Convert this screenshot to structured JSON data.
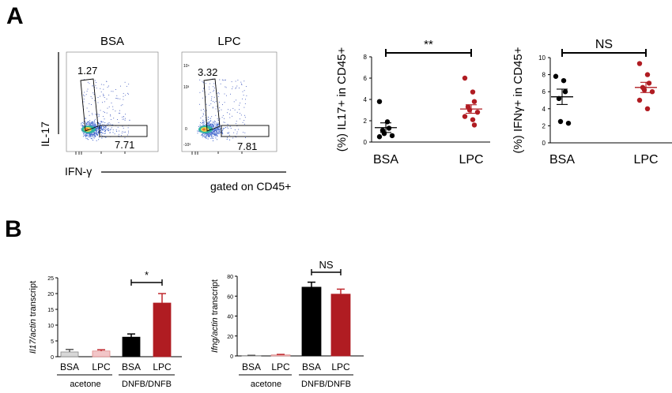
{
  "panel_a": {
    "label": "A",
    "flow": {
      "plots": [
        {
          "title": "BSA",
          "upper_gate_value": "1.27",
          "lower_gate_value": "7.71"
        },
        {
          "title": "LPC",
          "upper_gate_value": "3.32",
          "lower_gate_value": "7.81",
          "tick_labels": [
            "10⁴",
            "10³",
            "0",
            "-10³"
          ]
        }
      ],
      "y_axis_label": "IL-17",
      "x_axis_label": "IFN-γ",
      "gating_note": "gated on CD45+"
    }
  },
  "panel_b": {
    "label": "B",
    "group_labels": [
      "acetone",
      "DNFB/DNFB"
    ]
  },
  "colors": {
    "bsa": "#000000",
    "lpc": "#b01c22",
    "bsa_acetone_fill": "#d8d8d8",
    "lpc_acetone_fill": "#f2c6c8",
    "error_lpc": "#c0282d"
  },
  "chart_data": [
    {
      "type": "scatter",
      "ylabel": "(%) IL17+ in CD45+",
      "categories": [
        "BSA",
        "LPC"
      ],
      "ylim": [
        0,
        8
      ],
      "yticks": [
        "0",
        "2",
        "4",
        "6",
        "8"
      ],
      "series": [
        {
          "name": "BSA",
          "values": [
            3.8,
            1.9,
            1.3,
            1.1,
            0.8,
            0.6,
            0.5
          ],
          "mean": 1.35,
          "sem": 0.45
        },
        {
          "name": "LPC",
          "values": [
            6.0,
            4.7,
            3.8,
            3.3,
            3.0,
            2.8,
            2.4,
            2.1,
            1.6
          ],
          "mean": 3.1,
          "sem": 0.4
        }
      ],
      "significance": "**"
    },
    {
      "type": "scatter",
      "ylabel": "(%) IFNγ+ in CD45+",
      "categories": [
        "BSA",
        "LPC"
      ],
      "ylim": [
        0,
        10
      ],
      "yticks": [
        "0",
        "2",
        "4",
        "6",
        "8",
        "10"
      ],
      "series": [
        {
          "name": "BSA",
          "values": [
            7.8,
            7.3,
            6.0,
            5.2,
            2.5,
            2.3
          ],
          "mean": 5.4,
          "sem": 0.9
        },
        {
          "name": "LPC",
          "values": [
            9.3,
            8.0,
            7.0,
            6.5,
            6.2,
            6.0,
            5.0,
            4.0
          ],
          "mean": 6.5,
          "sem": 0.6
        }
      ],
      "significance": "NS"
    },
    {
      "type": "bar",
      "ylabel_italic": "Il17/actin",
      "ylabel_rest": " transcript",
      "categories": [
        "BSA",
        "LPC",
        "BSA",
        "LPC"
      ],
      "groups": [
        "acetone",
        "acetone",
        "DNFB/DNFB",
        "DNFB/DNFB"
      ],
      "values": [
        1.5,
        1.8,
        6.2,
        17.0
      ],
      "errors": [
        0.8,
        0.4,
        1.0,
        3.0
      ],
      "ylim": [
        0,
        25
      ],
      "yticks": [
        "0",
        "5",
        "10",
        "15",
        "20",
        "25"
      ],
      "significance": "*"
    },
    {
      "type": "bar",
      "ylabel_italic": "Ifng/actin",
      "ylabel_rest": " transcript",
      "categories": [
        "BSA",
        "LPC",
        "BSA",
        "LPC"
      ],
      "groups": [
        "acetone",
        "acetone",
        "DNFB/DNFB",
        "DNFB/DNFB"
      ],
      "values": [
        0.3,
        1.0,
        69.0,
        62.0
      ],
      "errors": [
        0.3,
        0.5,
        5.0,
        5.0
      ],
      "ylim": [
        0,
        80
      ],
      "yticks": [
        "0",
        "20",
        "40",
        "60",
        "80"
      ],
      "significance": "NS"
    }
  ]
}
